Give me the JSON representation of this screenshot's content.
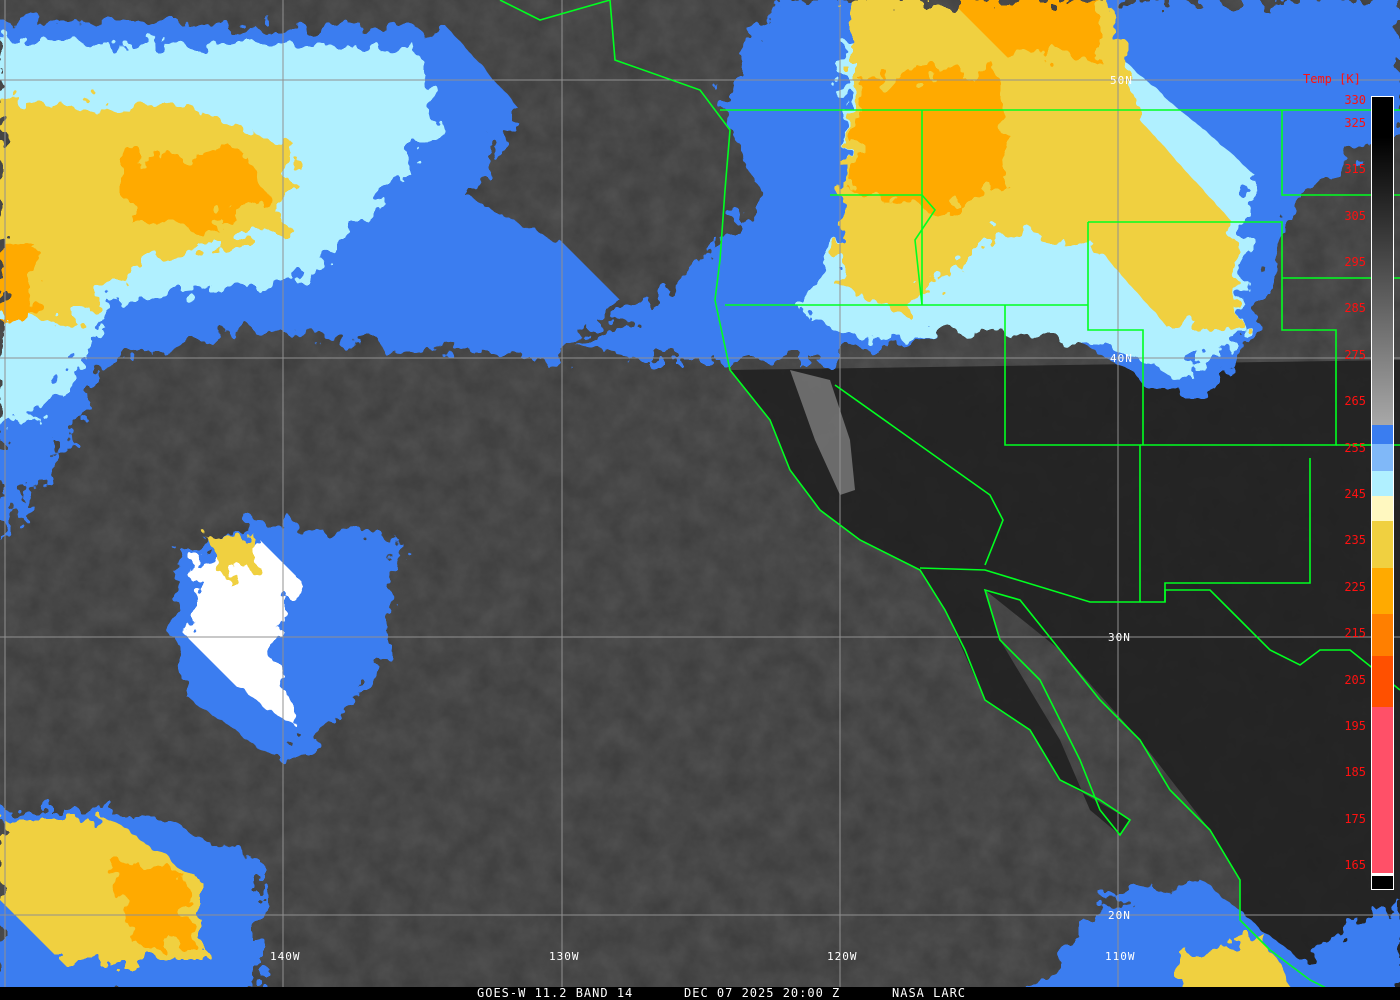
{
  "caption": {
    "product": "GOES-W 11.2 BAND 14",
    "datetime": "DEC 07 2025 20:00 Z",
    "source": "NASA LARC"
  },
  "colorbar": {
    "title": "Temp [K]",
    "ticks": [
      "330",
      "325",
      "315",
      "305",
      "295",
      "285",
      "275",
      "265",
      "255",
      "245",
      "235",
      "225",
      "215",
      "205",
      "195",
      "185",
      "175",
      "165"
    ],
    "colors": {
      "gray_top": "#000000",
      "gray_bottom": "#a8a8a8",
      "blue": "#3a7df0",
      "light_blue": "#80b8f8",
      "cyan": "#b0f0ff",
      "pale_yellow": "#fff8c0",
      "yellow": "#f0d040",
      "amber": "#ffaa00",
      "orange": "#ff7f00",
      "red_orange": "#ff5000",
      "pink": "#ff5068",
      "black": "#000000"
    }
  },
  "grid": {
    "lat_labels": [
      "50N",
      "40N",
      "30N",
      "20N"
    ],
    "lon_labels": [
      "140W",
      "130W",
      "120W",
      "110W"
    ]
  },
  "colors": {
    "boundaries": "#00ff20",
    "grid": "#909090",
    "label_text": "#ff1010",
    "ocean_ir": "#3c3c3c",
    "land_ir": "#1e1e1e"
  }
}
